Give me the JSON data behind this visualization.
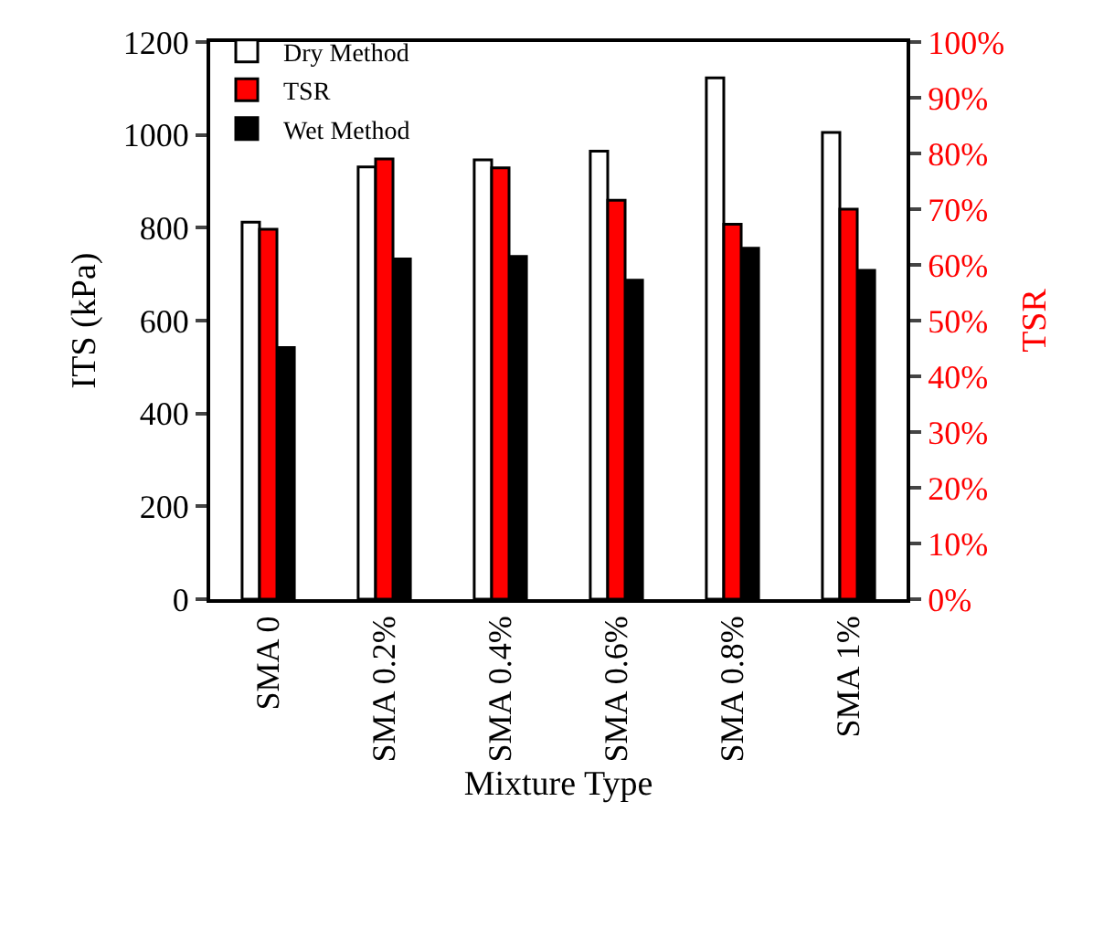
{
  "chart_data": {
    "type": "bar",
    "xlabel": "Mixture Type",
    "ylabel": "ITS (kPa)",
    "y2label": "TSR",
    "categories": [
      "SMA 0",
      "SMA 0.2%",
      "SMA 0.4%",
      "SMA 0.6%",
      "SMA 0.8%",
      "SMA 1%"
    ],
    "series": [
      {
        "name": "Dry Method",
        "color": "#ffffff",
        "values": [
          812,
          931,
          946,
          965,
          1123,
          1005
        ]
      },
      {
        "name": "TSR",
        "color": "#ff0000",
        "axis": "y2",
        "values": [
          66.4,
          79.0,
          77.4,
          71.6,
          67.3,
          70.0
        ]
      },
      {
        "name": "Wet Method",
        "color": "#000000",
        "values": [
          542,
          733,
          738,
          687,
          756,
          708
        ]
      }
    ],
    "ylim": [
      0,
      1200
    ],
    "yticks": [
      0,
      200,
      400,
      600,
      800,
      1000,
      1200
    ],
    "y2lim": [
      0,
      100
    ],
    "y2ticks": [
      {
        "value": 0,
        "label": "0%"
      },
      {
        "value": 10,
        "label": "10%"
      },
      {
        "value": 20,
        "label": "20%"
      },
      {
        "value": 30,
        "label": "30%"
      },
      {
        "value": 40,
        "label": "40%"
      },
      {
        "value": 50,
        "label": "50%"
      },
      {
        "value": 60,
        "label": "60%"
      },
      {
        "value": 70,
        "label": "70%"
      },
      {
        "value": 80,
        "label": "80%"
      },
      {
        "value": 90,
        "label": "90%"
      },
      {
        "value": 100,
        "label": "100%"
      }
    ],
    "legend": "top left",
    "grid": false
  }
}
